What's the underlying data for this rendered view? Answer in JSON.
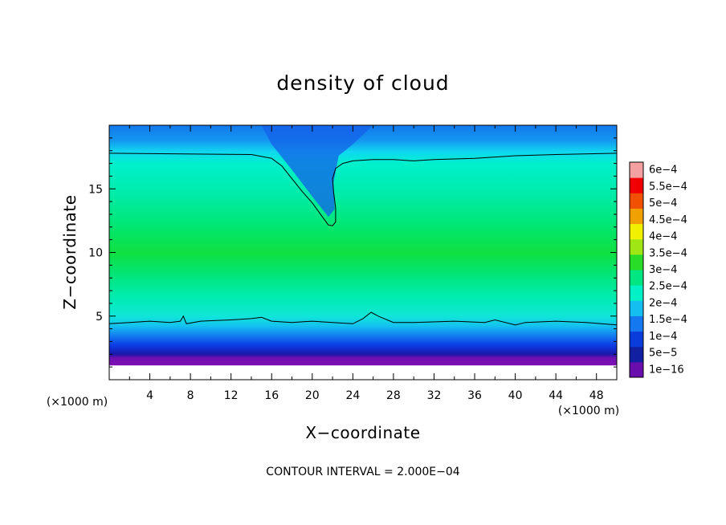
{
  "chart_data": {
    "type": "heatmap",
    "title": "density of cloud",
    "xlabel": "X−coordinate",
    "ylabel": "Z−coordinate",
    "x_unit": "(×1000 m)",
    "y_unit": "(×1000 m)",
    "xlim": [
      0,
      50
    ],
    "ylim": [
      0,
      20
    ],
    "x_ticks": [
      4,
      8,
      12,
      16,
      20,
      24,
      28,
      32,
      36,
      40,
      44,
      48
    ],
    "y_ticks": [
      5,
      10,
      15
    ],
    "contour_interval": "CONTOUR INTERVAL = 2.000E−04",
    "colorbar": {
      "labels": [
        "1e−16",
        "5e−5",
        "1e−4",
        "1.5e−4",
        "2e−4",
        "2.5e−4",
        "3e−4",
        "3.5e−4",
        "4e−4",
        "4.5e−4",
        "5e−4",
        "5.5e−4",
        "6e−4"
      ],
      "colors": [
        "#6a0dad",
        "#1020a0",
        "#0a3cdc",
        "#1478f0",
        "#14bef0",
        "#00f0c8",
        "#00e682",
        "#28dc28",
        "#a0e614",
        "#f0f000",
        "#f0a000",
        "#f05000",
        "#f00000",
        "#f4a0a0"
      ]
    },
    "contour_2e-4_top": [
      [
        0,
        17.8
      ],
      [
        14,
        17.7
      ],
      [
        16,
        17.4
      ],
      [
        17,
        16.8
      ],
      [
        18,
        15.8
      ],
      [
        19,
        14.8
      ],
      [
        20,
        13.9
      ],
      [
        21,
        12.8
      ],
      [
        21.6,
        12.15
      ],
      [
        22,
        12.1
      ],
      [
        22.3,
        12.4
      ],
      [
        22.3,
        13.5
      ],
      [
        22.1,
        14.8
      ],
      [
        22,
        15.8
      ],
      [
        22.3,
        16.6
      ],
      [
        23,
        17.0
      ],
      [
        24,
        17.2
      ],
      [
        26,
        17.3
      ],
      [
        28,
        17.3
      ],
      [
        30,
        17.2
      ],
      [
        32,
        17.3
      ],
      [
        36,
        17.4
      ],
      [
        40,
        17.6
      ],
      [
        44,
        17.7
      ],
      [
        50,
        17.8
      ]
    ],
    "contour_2e-4_bottom": [
      [
        0,
        4.4
      ],
      [
        2,
        4.5
      ],
      [
        4,
        4.6
      ],
      [
        6,
        4.5
      ],
      [
        7,
        4.6
      ],
      [
        7.3,
        5.0
      ],
      [
        7.6,
        4.4
      ],
      [
        9,
        4.6
      ],
      [
        12,
        4.7
      ],
      [
        14,
        4.8
      ],
      [
        15,
        4.9
      ],
      [
        16,
        4.6
      ],
      [
        18,
        4.5
      ],
      [
        20,
        4.6
      ],
      [
        22,
        4.5
      ],
      [
        24,
        4.4
      ],
      [
        25,
        4.8
      ],
      [
        25.8,
        5.3
      ],
      [
        26.5,
        5.0
      ],
      [
        28,
        4.5
      ],
      [
        30,
        4.5
      ],
      [
        34,
        4.6
      ],
      [
        37,
        4.5
      ],
      [
        38,
        4.7
      ],
      [
        40,
        4.3
      ],
      [
        41,
        4.5
      ],
      [
        44,
        4.6
      ],
      [
        47,
        4.5
      ],
      [
        50,
        4.3
      ]
    ]
  }
}
